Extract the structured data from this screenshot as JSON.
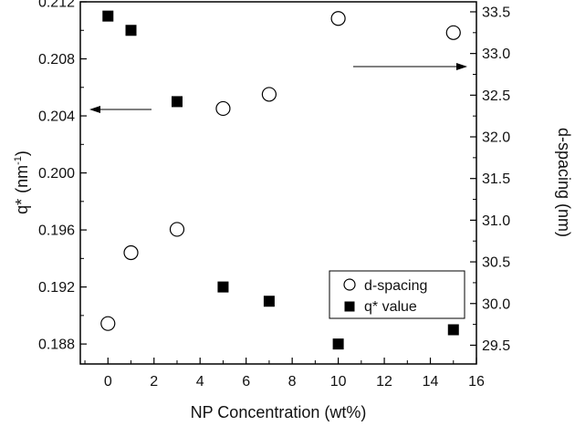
{
  "chart_data": {
    "type": "scatter",
    "xlabel": "NP Concentration (wt%)",
    "ylabel_left_main": "q*",
    "ylabel_left_unit": "(nm",
    "ylabel_left_exp": "-1",
    "ylabel_left_close": ")",
    "ylabel_right": "d-spacing (nm)",
    "xlim": [
      -1.2,
      16
    ],
    "ylim_left": [
      0.1866,
      0.212
    ],
    "ylim_right": [
      29.275,
      33.62
    ],
    "x_ticks": [
      0,
      2,
      4,
      6,
      8,
      10,
      12,
      14,
      16
    ],
    "x_tick_labels": [
      "0",
      "2",
      "4",
      "6",
      "8",
      "10",
      "12",
      "14",
      "16"
    ],
    "y_left_ticks": [
      0.188,
      0.192,
      0.196,
      0.2,
      0.204,
      0.208,
      0.212
    ],
    "y_left_tick_labels": [
      "0.188",
      "0.192",
      "0.196",
      "0.200",
      "0.204",
      "0.208",
      "0.212"
    ],
    "y_right_ticks": [
      29.5,
      30.0,
      30.5,
      31.0,
      31.5,
      32.0,
      32.5,
      33.0,
      33.5
    ],
    "y_right_tick_labels": [
      "29.5",
      "30.0",
      "30.5",
      "31.0",
      "31.5",
      "32.0",
      "32.5",
      "33.0",
      "33.5"
    ],
    "series": [
      {
        "name": "d-spacing",
        "axis": "right",
        "marker": "open-circle",
        "x": [
          0,
          1,
          3,
          5,
          7,
          10,
          15
        ],
        "y": [
          29.76,
          30.61,
          30.89,
          32.34,
          32.51,
          33.42,
          33.25
        ]
      },
      {
        "name": "q* value",
        "axis": "left",
        "marker": "filled-square",
        "x": [
          0,
          1,
          3,
          5,
          7,
          10,
          15
        ],
        "y": [
          0.211,
          0.21,
          0.205,
          0.192,
          0.191,
          0.188,
          0.189
        ]
      }
    ],
    "annotations": [
      {
        "type": "arrow",
        "direction": "left",
        "points_to": "left-axis"
      },
      {
        "type": "arrow",
        "direction": "right",
        "points_to": "right-axis"
      }
    ],
    "legend_position": "lower-right",
    "grid": false
  }
}
